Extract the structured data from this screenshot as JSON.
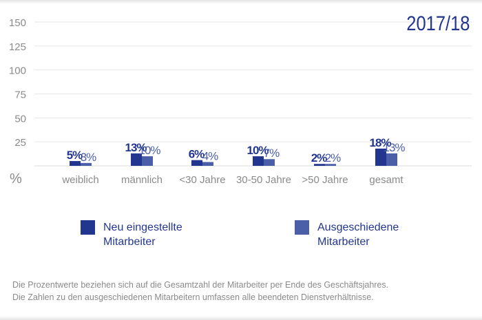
{
  "chart_data": {
    "type": "bar",
    "title": "2017/18",
    "ylabel": "%",
    "ylim": [
      0,
      150
    ],
    "yticks": [
      25,
      50,
      75,
      100,
      125,
      150
    ],
    "grid": true,
    "categories": [
      "weiblich",
      "männlich",
      "<30 Jahre",
      "30-50 Jahre",
      ">50 Jahre",
      "gesamt"
    ],
    "series": [
      {
        "name": "Neu eingestellte Mitarbeiter",
        "values": [
          5,
          13,
          6,
          10,
          2,
          18
        ],
        "labels": [
          "5%",
          "13%",
          "6%",
          "10%",
          "2%",
          "18%"
        ],
        "color": "#22368f"
      },
      {
        "name": "Ausgeschiedene Mitarbeiter",
        "values": [
          3,
          10,
          4,
          7,
          2,
          13
        ],
        "labels": [
          "3%",
          "10%",
          "4%",
          "7%",
          "2%",
          "13%"
        ],
        "color": "#4b5fa9"
      }
    ],
    "legend_position": "bottom",
    "legend": [
      {
        "line1": "Neu eingestellte",
        "line2": "Mitarbeiter"
      },
      {
        "line1": "Ausgeschiedene",
        "line2": "Mitarbeiter"
      }
    ]
  },
  "notes": [
    "Die Prozentwerte beziehen sich auf die Gesamtzahl der Mitarbeiter per Ende des Geschäftsjahres.",
    "Die Zahlen zu den ausgeschiedenen Mitarbeitern umfassen alle beendeten Dienstverhältnisse."
  ]
}
